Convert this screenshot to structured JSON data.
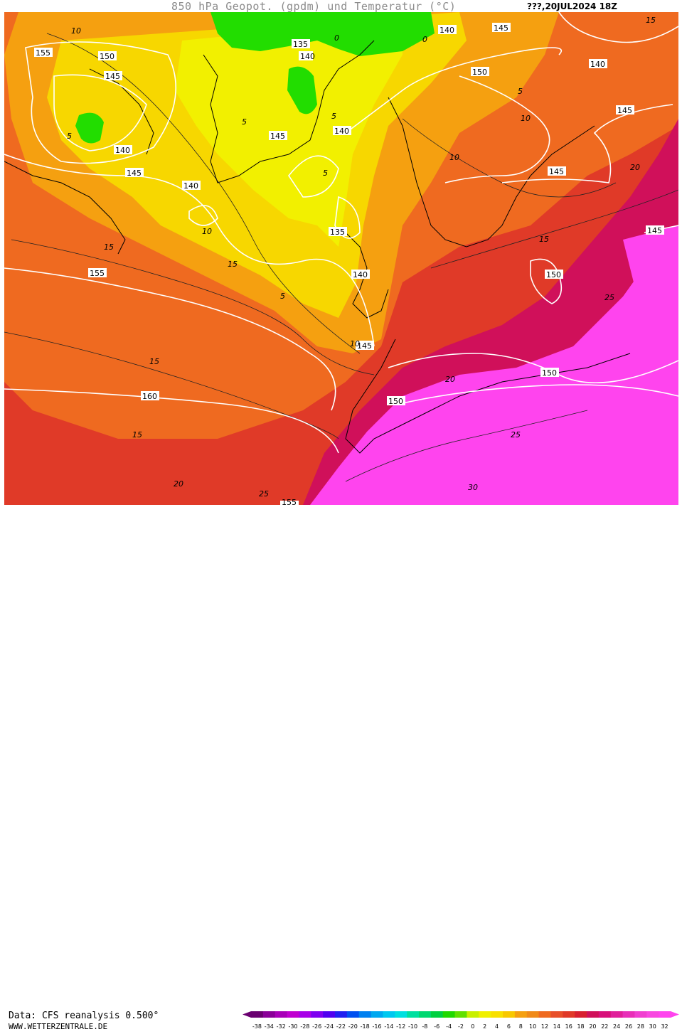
{
  "header": {
    "title": "850 hPa Geopot. (gpdm) und Temperatur (°C)",
    "run": "???,20JUL2024 18Z"
  },
  "footer": {
    "data_source": "Data: CFS reanalysis 0.500°",
    "website": "WWW.WETTERZENTRALE.DE"
  },
  "colors": {
    "very_hot": "#ff44ee",
    "hot": "#d0105a",
    "warm": "#e03a28",
    "mild": "#ef6a20",
    "cool": "#f5a010",
    "cold": "#f7d700",
    "colder": "#f2f000",
    "freezing": "#22dd00",
    "geopotential_contour": "#ffffff",
    "isotherm": "#222222"
  },
  "color_scale": {
    "ticks": [
      "-38",
      "-34",
      "-32",
      "-30",
      "-28",
      "-26",
      "-24",
      "-22",
      "-20",
      "-18",
      "-16",
      "-14",
      "-12",
      "-10",
      "-8",
      "-6",
      "-4",
      "-2",
      "0",
      "2",
      "4",
      "6",
      "8",
      "10",
      "12",
      "14",
      "16",
      "18",
      "20",
      "22",
      "24",
      "26",
      "28",
      "30",
      "32"
    ],
    "colors": [
      "#6a0070",
      "#8a0098",
      "#a800b8",
      "#c000d0",
      "#a800e8",
      "#7e00f0",
      "#5000f0",
      "#2020f0",
      "#0050f0",
      "#0080f0",
      "#00a8f0",
      "#00c8f0",
      "#00e0e0",
      "#00e0a0",
      "#00d870",
      "#00d040",
      "#20d800",
      "#60e000",
      "#c8f000",
      "#f0f000",
      "#f8e000",
      "#f8c800",
      "#f5a010",
      "#f08a18",
      "#ef6a20",
      "#e8502a",
      "#e03a28",
      "#d82030",
      "#d0105a",
      "#d8107a",
      "#e0209a",
      "#e830b8",
      "#f040d0",
      "#f848e0",
      "#ff44ee"
    ]
  },
  "geopotential_labels": [
    "160",
    "155",
    "155",
    "155",
    "150",
    "150",
    "150",
    "150",
    "150",
    "145",
    "145",
    "145",
    "145",
    "145",
    "145",
    "145",
    "145",
    "140",
    "140",
    "140",
    "140",
    "140",
    "140",
    "135",
    "135",
    "140"
  ],
  "isotherm_labels": [
    "10",
    "10",
    "10",
    "10",
    "10",
    "15",
    "15",
    "15",
    "15",
    "15",
    "15",
    "20",
    "20",
    "20",
    "25",
    "25",
    "25",
    "30",
    "5",
    "5",
    "5",
    "5",
    "5",
    "5",
    "0",
    "0"
  ]
}
